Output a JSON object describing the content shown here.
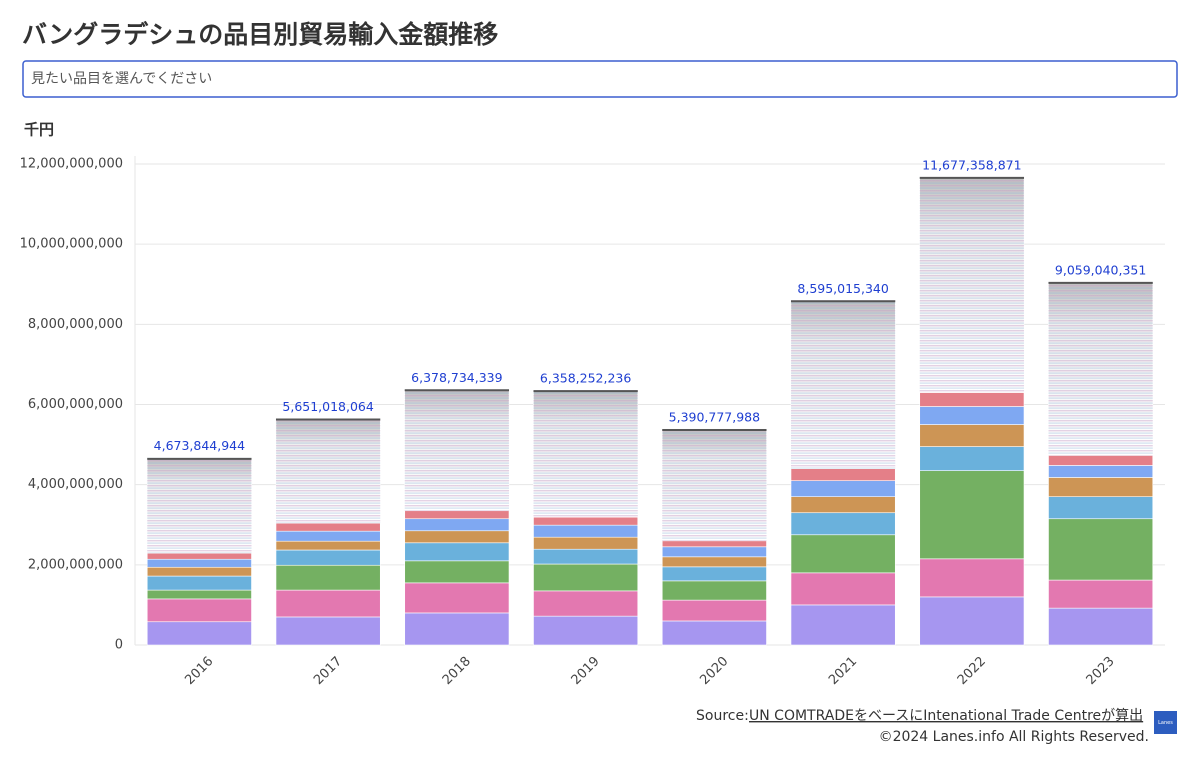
{
  "chart_data": {
    "type": "stacked_bar",
    "title": "バングラデシュの品目別貿易輸入金額推移",
    "y_unit": "千円",
    "categories": [
      "2016",
      "2017",
      "2018",
      "2019",
      "2020",
      "2021",
      "2022",
      "2023"
    ],
    "series": [
      {
        "color": "#a696f0",
        "values": [
          580000000,
          700000000,
          800000000,
          720000000,
          600000000,
          1000000000,
          1200000000,
          920000000
        ]
      },
      {
        "color": "#e378b0",
        "values": [
          570000000,
          670000000,
          750000000,
          630000000,
          520000000,
          800000000,
          950000000,
          700000000
        ]
      },
      {
        "color": "#74b062",
        "values": [
          220000000,
          620000000,
          550000000,
          670000000,
          480000000,
          950000000,
          2200000000,
          1530000000
        ]
      },
      {
        "color": "#6ab1dc",
        "values": [
          350000000,
          380000000,
          450000000,
          370000000,
          350000000,
          550000000,
          600000000,
          550000000
        ]
      },
      {
        "color": "#cd9555",
        "values": [
          220000000,
          220000000,
          300000000,
          300000000,
          250000000,
          400000000,
          550000000,
          480000000
        ]
      },
      {
        "color": "#7fa8f2",
        "values": [
          200000000,
          250000000,
          300000000,
          300000000,
          250000000,
          400000000,
          450000000,
          300000000
        ]
      },
      {
        "color": "#e47f88",
        "values": [
          150000000,
          200000000,
          200000000,
          200000000,
          150000000,
          300000000,
          350000000,
          250000000
        ]
      },
      {
        "color": "#d9d9d9",
        "values": [
          2380000000,
          2610000000,
          3030000000,
          3170000000,
          2790000000,
          4200000000,
          5380000000,
          4330000000
        ]
      }
    ],
    "totals": {
      "values": [
        4673844944,
        5651018064,
        6378734339,
        6358252236,
        5390777988,
        8595015340,
        11677358871,
        9059040351
      ],
      "value_labels": [
        "4,673,844,944",
        "5,651,018,064",
        "6,378,734,339",
        "6,358,252,236",
        "5,390,777,988",
        "8,595,015,340",
        "11,677,358,871",
        "9,059,040,351"
      ],
      "color": "#1f3fd1"
    },
    "ylim": [
      0,
      12200000000
    ],
    "yticks": [
      0,
      {
        "value": 2000000000,
        "label": "2,000,000,000"
      },
      {
        "value": 4000000000,
        "label": "4,000,000,000"
      },
      {
        "value": 6000000000,
        "label": "6,000,000,000"
      },
      {
        "value": 8000000000,
        "label": "8,000,000,000"
      },
      {
        "value": 10000000000,
        "label": "10,000,000,000"
      },
      {
        "value": 12000000000,
        "label": "12,000,000,000"
      }
    ],
    "grid": true
  },
  "search_placeholder": "見たい品目を選んでください",
  "source_prefix": "Source:",
  "source_link": "UN COMTRADEをベースにIntenational Trade Centreが算出",
  "copyright": "©2024 Lanes.info All Rights Reserved.",
  "logo": "Lanes"
}
